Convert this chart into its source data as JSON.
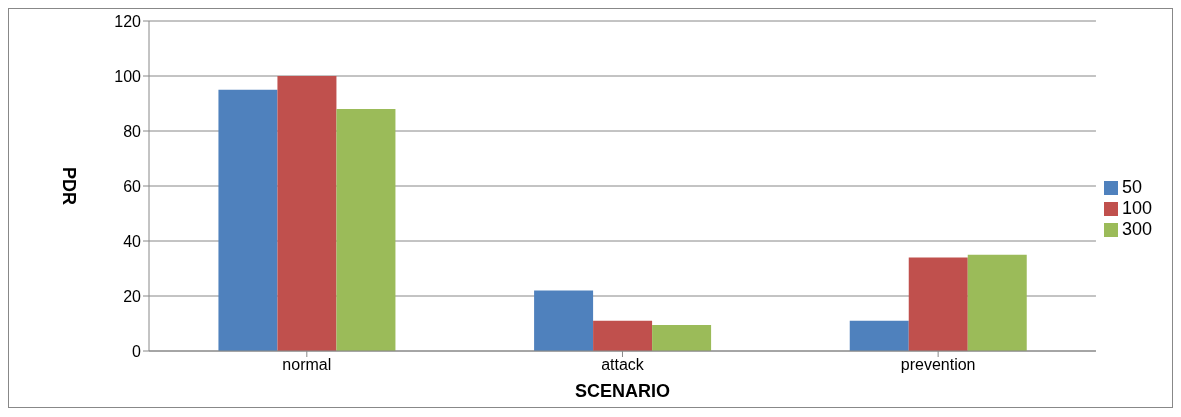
{
  "chart_data": {
    "type": "bar",
    "xlabel": "SCENARIO",
    "ylabel": "PDR",
    "categories": [
      "normal",
      "attack",
      "prevention"
    ],
    "series": [
      {
        "name": "50",
        "color": "#4f81bd",
        "values": [
          95,
          22,
          11
        ]
      },
      {
        "name": "100",
        "color": "#c0504d",
        "values": [
          100,
          11,
          34
        ]
      },
      {
        "name": "300",
        "color": "#9bbb59",
        "values": [
          88,
          9.5,
          35
        ]
      }
    ],
    "ylim": [
      0,
      120
    ],
    "yticks": [
      0,
      20,
      40,
      60,
      80,
      100,
      120
    ],
    "grid": "y",
    "legend": "right"
  }
}
